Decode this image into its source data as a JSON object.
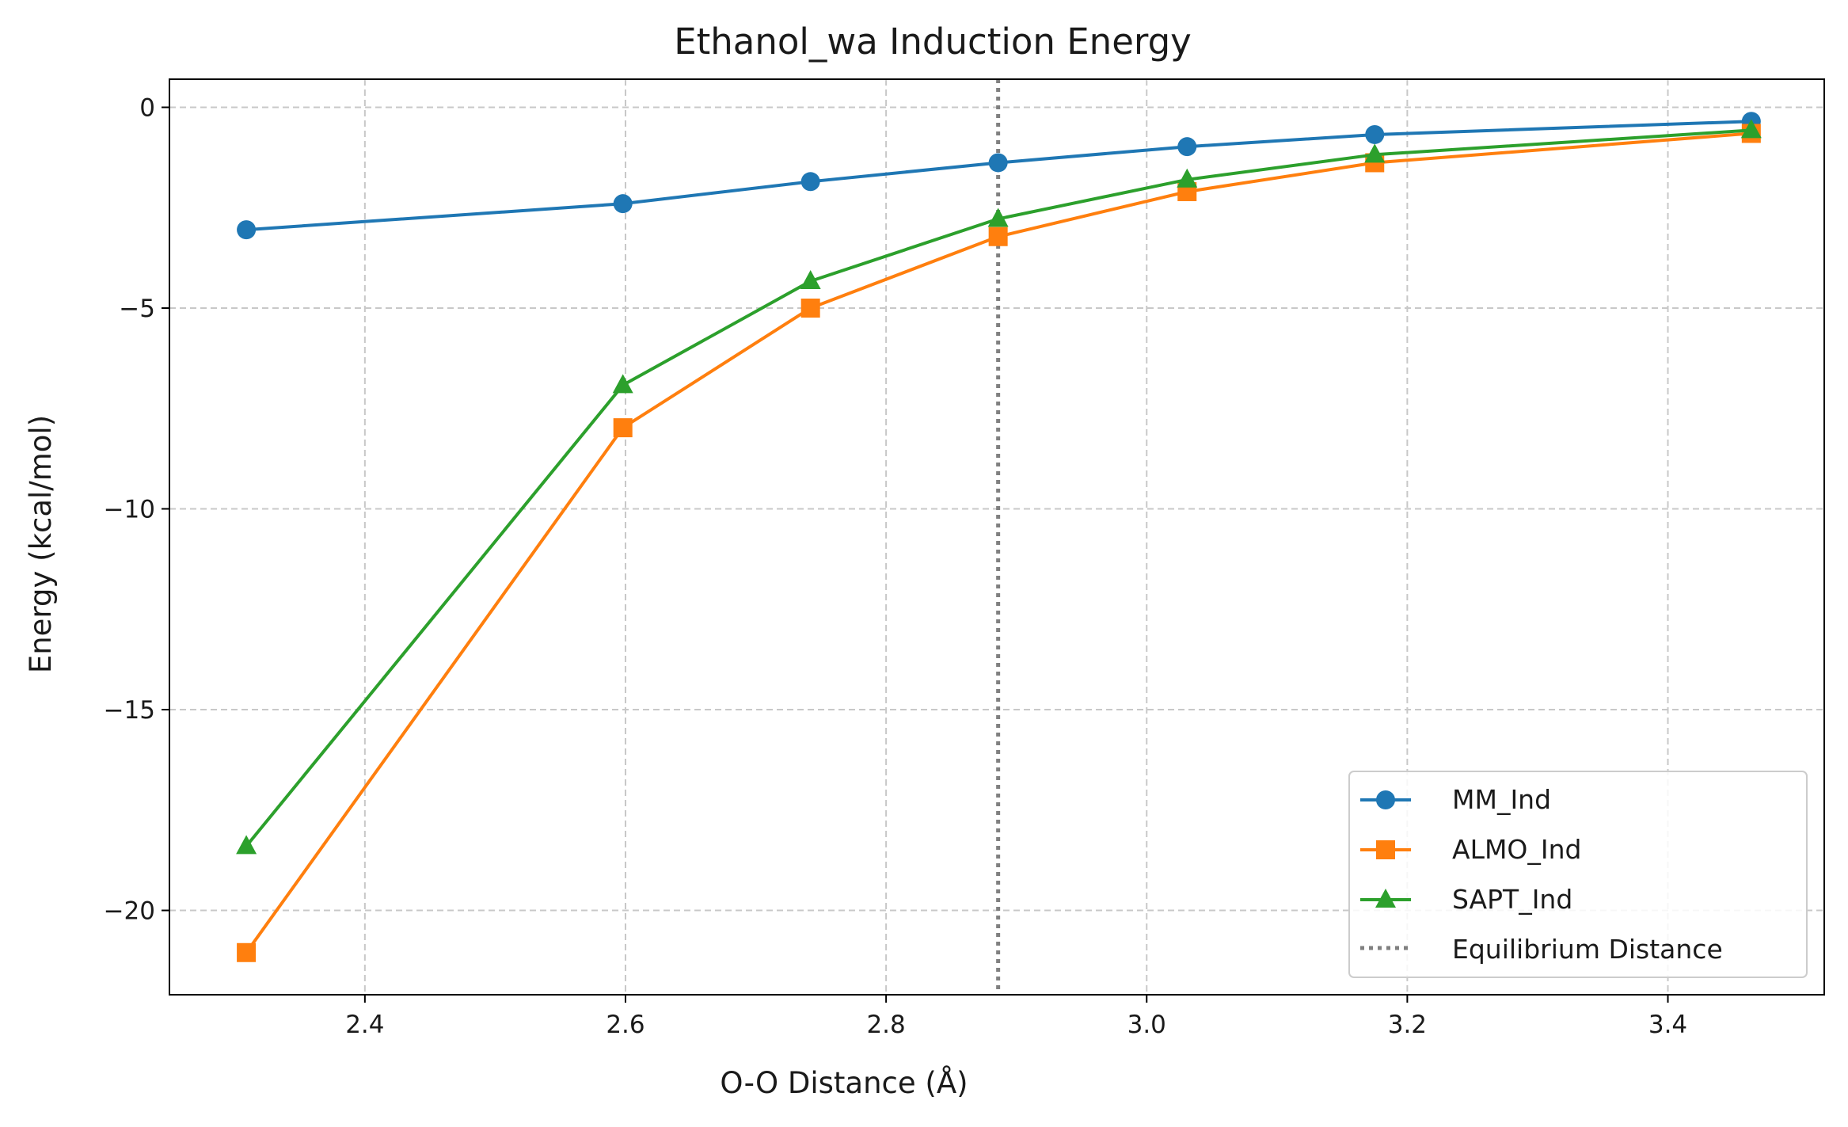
{
  "chart_data": {
    "type": "line",
    "title": "Ethanol_wa Induction Energy",
    "xlabel": "O-O Distance (Å)",
    "ylabel": "Energy (kcal/mol)",
    "xlim": [
      2.25,
      3.52
    ],
    "ylim": [
      -22.1,
      0.7
    ],
    "x": [
      2.309,
      2.598,
      2.742,
      2.886,
      3.031,
      3.175,
      3.464
    ],
    "xticks": [
      2.4,
      2.6,
      2.8,
      3.0,
      3.2,
      3.4
    ],
    "xtick_labels": [
      "2.4",
      "2.6",
      "2.8",
      "3.0",
      "3.2",
      "3.4"
    ],
    "yticks": [
      0,
      -5,
      -10,
      -15,
      -20
    ],
    "ytick_labels": [
      "0",
      "−5",
      "−10",
      "−15",
      "−20"
    ],
    "grid": true,
    "legend_position": "bottom-right",
    "series": [
      {
        "name": "MM_Ind",
        "color": "#1f77b4",
        "marker": "circle",
        "values": [
          -3.05,
          -2.4,
          -1.85,
          -1.38,
          -0.98,
          -0.68,
          -0.35
        ]
      },
      {
        "name": "ALMO_Ind",
        "color": "#ff7f0e",
        "marker": "square",
        "values": [
          -21.05,
          -7.98,
          -5.0,
          -3.22,
          -2.1,
          -1.38,
          -0.65
        ]
      },
      {
        "name": "SAPT_Ind",
        "color": "#2ca02c",
        "marker": "triangle",
        "values": [
          -18.4,
          -6.92,
          -4.33,
          -2.78,
          -1.8,
          -1.18,
          -0.57
        ]
      }
    ],
    "reference_line": {
      "name": "Equilibrium Distance",
      "x": 2.886,
      "color": "#808080",
      "style": "dotted"
    }
  }
}
